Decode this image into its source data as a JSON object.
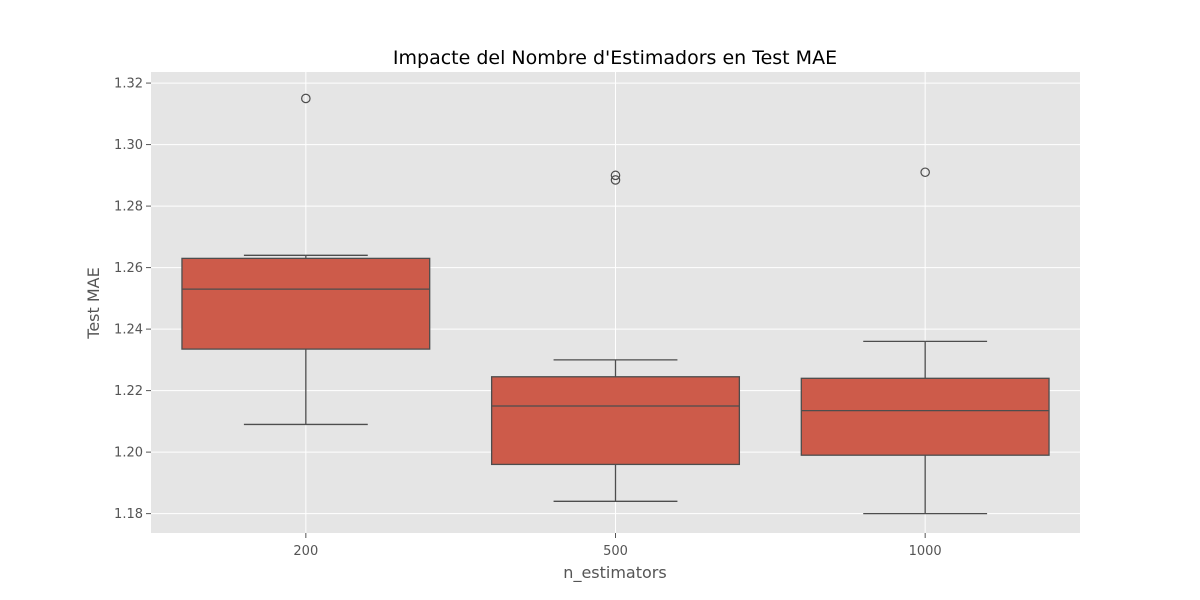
{
  "chart_data": {
    "type": "box",
    "title": "Impacte del Nombre d'Estimadors en Test MAE",
    "xlabel": "n_estimators",
    "ylabel": "Test MAE",
    "categories": [
      "200",
      "500",
      "1000"
    ],
    "ylim": [
      1.1737,
      1.3236
    ],
    "yticks": [
      1.18,
      1.2,
      1.22,
      1.24,
      1.26,
      1.28,
      1.3,
      1.32
    ],
    "ytick_labels": [
      "1.18",
      "1.20",
      "1.22",
      "1.24",
      "1.26",
      "1.28",
      "1.30",
      "1.32"
    ],
    "grid": true,
    "background_color": "#e5e5e5",
    "box_color": "#cd5b4a",
    "line_color": "#4d4d4d",
    "boxes": [
      {
        "category": "200",
        "whisker_low": 1.209,
        "q1": 1.2335,
        "median": 1.253,
        "q3": 1.263,
        "whisker_high": 1.264,
        "outliers": [
          1.315
        ]
      },
      {
        "category": "500",
        "whisker_low": 1.184,
        "q1": 1.196,
        "median": 1.215,
        "q3": 1.2245,
        "whisker_high": 1.23,
        "outliers": [
          1.29,
          1.2885
        ]
      },
      {
        "category": "1000",
        "whisker_low": 1.18,
        "q1": 1.199,
        "median": 1.2135,
        "q3": 1.224,
        "whisker_high": 1.236,
        "outliers": [
          1.291
        ]
      }
    ]
  }
}
